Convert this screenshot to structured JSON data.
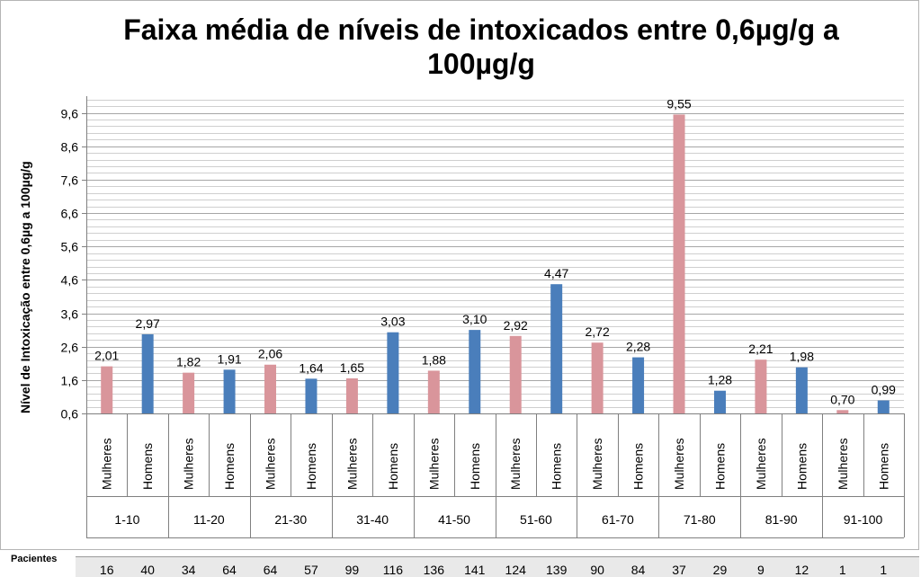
{
  "chart_data": {
    "type": "bar",
    "title": "Faixa média de níveis de intoxicados entre 0,6µg/g a 100µg/g",
    "ylabel": "Nível de Intoxicação entre  0,6µg a 100µg/g",
    "ylim": [
      0.6,
      10.1
    ],
    "yticks": [
      "0,6",
      "1,6",
      "2,6",
      "3,6",
      "4,6",
      "5,6",
      "6,6",
      "7,6",
      "8,6",
      "9,6"
    ],
    "grid": true,
    "groups": [
      "1-10",
      "11-20",
      "21-30",
      "31-40",
      "41-50",
      "51-60",
      "61-70",
      "71-80",
      "81-90",
      "91-100"
    ],
    "series": [
      {
        "name": "Mulheres",
        "color": "#d9959b",
        "values": [
          2.01,
          1.82,
          2.06,
          1.65,
          1.88,
          2.92,
          2.72,
          9.55,
          2.21,
          0.7
        ],
        "labels": [
          "2,01",
          "1,82",
          "2,06",
          "1,65",
          "1,88",
          "2,92",
          "2,72",
          "9,55",
          "2,21",
          "0,70"
        ],
        "patients": [
          "16",
          "34",
          "64",
          "99",
          "136",
          "124",
          "90",
          "37",
          "9",
          "1"
        ]
      },
      {
        "name": "Homens",
        "color": "#4a7ebb",
        "values": [
          2.97,
          1.91,
          1.64,
          3.03,
          3.1,
          4.47,
          2.28,
          1.28,
          1.98,
          0.99
        ],
        "labels": [
          "2,97",
          "1,91",
          "1,64",
          "3,03",
          "3,10",
          "4,47",
          "2,28",
          "1,28",
          "1,98",
          "0,99"
        ],
        "patients": [
          "40",
          "64",
          "57",
          "116",
          "141",
          "139",
          "84",
          "29",
          "12",
          "1"
        ]
      }
    ],
    "patients_label": "Pacientes"
  }
}
